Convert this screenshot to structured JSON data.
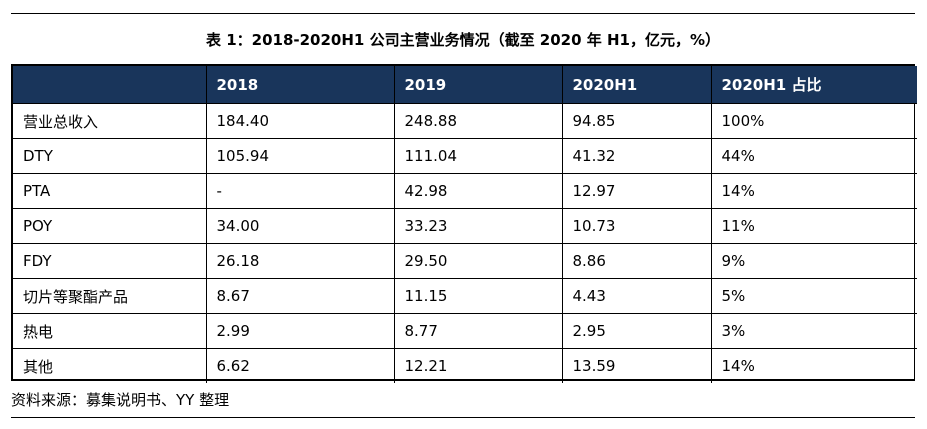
{
  "title": "表 1：2018-2020H1 公司主营业务情况（截至 2020 年 H1，亿元，%）",
  "table": {
    "headers": [
      "",
      "2018",
      "2019",
      "2020H1",
      "2020H1 占比"
    ],
    "rows": [
      [
        "营业总收入",
        "184.40",
        "248.88",
        "94.85",
        "100%"
      ],
      [
        "DTY",
        "105.94",
        "111.04",
        "41.32",
        "44%"
      ],
      [
        "PTA",
        "-",
        "42.98",
        "12.97",
        "14%"
      ],
      [
        "POY",
        "34.00",
        "33.23",
        "10.73",
        "11%"
      ],
      [
        "FDY",
        "26.18",
        "29.50",
        "8.86",
        "9%"
      ],
      [
        "切片等聚酯产品",
        "8.67",
        "11.15",
        "4.43",
        "5%"
      ],
      [
        "热电",
        "2.99",
        "8.77",
        "2.95",
        "3%"
      ],
      [
        "其他",
        "6.62",
        "12.21",
        "13.59",
        "14%"
      ]
    ]
  },
  "source": "资料来源：募集说明书、YY 整理",
  "colors": {
    "header_bg": "#19355b",
    "header_text": "#ffffff",
    "rule": "#000000"
  }
}
